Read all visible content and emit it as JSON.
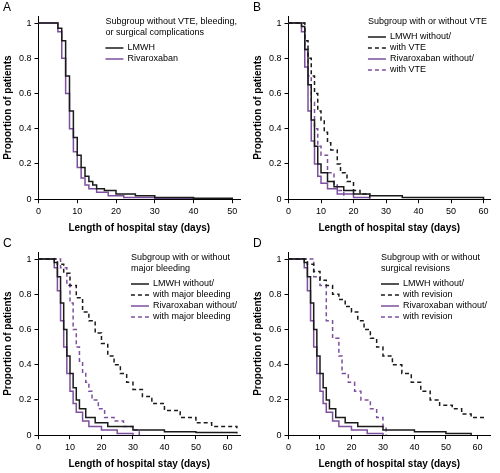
{
  "chart_data": [
    {
      "type": "line",
      "panel": "A",
      "title": [
        "Subgroup without VTE, bleeding,",
        "or surgical complications"
      ],
      "x_label": "Length of hospital stay (days)",
      "y_label": "Proportion of patients",
      "xlim": [
        0,
        52
      ],
      "xticks": [
        0,
        10,
        20,
        30,
        40,
        50
      ],
      "ylim": [
        0,
        1.04
      ],
      "yticks": [
        0,
        0.2,
        0.4,
        0.6,
        0.8,
        1
      ],
      "grid": false,
      "series": [
        {
          "name": "LMWH",
          "color": "#1a1a1a",
          "line_style": "solid",
          "x": [
            0,
            5,
            6,
            7,
            8,
            9,
            10,
            11,
            12,
            13,
            14,
            15,
            17,
            20,
            25,
            30,
            40,
            50
          ],
          "values": [
            1,
            0.97,
            0.9,
            0.7,
            0.5,
            0.35,
            0.25,
            0.18,
            0.13,
            0.1,
            0.08,
            0.06,
            0.05,
            0.03,
            0.02,
            0.01,
            0.005,
            0
          ]
        },
        {
          "name": "Rivaroxaban",
          "color": "#7d4f9e",
          "line_style": "solid",
          "x": [
            0,
            5,
            6,
            7,
            8,
            9,
            10,
            11,
            12,
            13,
            15,
            18,
            22,
            30,
            40
          ],
          "values": [
            1,
            0.95,
            0.8,
            0.6,
            0.4,
            0.27,
            0.18,
            0.12,
            0.08,
            0.06,
            0.04,
            0.02,
            0.01,
            0.005,
            0
          ]
        }
      ]
    },
    {
      "type": "line",
      "panel": "B",
      "title": [
        "Subgroup with or without VTE"
      ],
      "x_label": "Length of hospital stay (days)",
      "y_label": "Proportion of patients",
      "xlim": [
        0,
        62
      ],
      "xticks": [
        0,
        10,
        20,
        30,
        40,
        50,
        60
      ],
      "ylim": [
        0,
        1.04
      ],
      "yticks": [
        0,
        0.2,
        0.4,
        0.6,
        0.8,
        1
      ],
      "grid": false,
      "series": [
        {
          "name": "LMWH without/",
          "color": "#1a1a1a",
          "line_style": "solid",
          "x": [
            0,
            4,
            5,
            6,
            7,
            8,
            9,
            10,
            12,
            14,
            17,
            20,
            25,
            35,
            60
          ],
          "values": [
            1,
            0.98,
            0.85,
            0.65,
            0.45,
            0.3,
            0.2,
            0.15,
            0.1,
            0.07,
            0.05,
            0.03,
            0.02,
            0.01,
            0
          ]
        },
        {
          "name": "with VTE",
          "color": "#1a1a1a",
          "line_style": "dashed",
          "x": [
            0,
            5,
            6,
            7,
            8,
            9,
            10,
            11,
            12,
            13,
            15,
            16,
            18,
            20,
            22,
            25
          ],
          "values": [
            1,
            0.9,
            0.8,
            0.7,
            0.6,
            0.5,
            0.45,
            0.38,
            0.32,
            0.28,
            0.2,
            0.15,
            0.1,
            0.05,
            0.03,
            0
          ]
        },
        {
          "name": "Rivaroxaban without/",
          "color": "#7d4f9e",
          "line_style": "solid",
          "x": [
            0,
            4,
            5,
            6,
            7,
            8,
            9,
            10,
            12,
            15,
            20,
            25
          ],
          "values": [
            1,
            0.95,
            0.75,
            0.5,
            0.33,
            0.2,
            0.13,
            0.09,
            0.06,
            0.03,
            0.01,
            0
          ]
        },
        {
          "name": "with VTE",
          "color": "#7d4f9e",
          "line_style": "dashed",
          "x": [
            0,
            5,
            6,
            7,
            8,
            9,
            10,
            12,
            14,
            15,
            17
          ],
          "values": [
            1,
            0.85,
            0.7,
            0.55,
            0.4,
            0.3,
            0.25,
            0.15,
            0.08,
            0.05,
            0
          ]
        }
      ]
    },
    {
      "type": "line",
      "panel": "C",
      "title": [
        "Subgroup with or without",
        "major bleeding"
      ],
      "x_label": "Length of hospital stay (days)",
      "y_label": "Proportion of patients",
      "xlim": [
        0,
        64
      ],
      "xticks": [
        0,
        10,
        20,
        30,
        40,
        50,
        60
      ],
      "ylim": [
        0,
        1.04
      ],
      "yticks": [
        0,
        0.2,
        0.4,
        0.6,
        0.8,
        1
      ],
      "grid": false,
      "series": [
        {
          "name": "LMWH without/",
          "color": "#1a1a1a",
          "line_style": "solid",
          "x": [
            0,
            5,
            6,
            7,
            8,
            9,
            10,
            11,
            12,
            13,
            15,
            18,
            22,
            30,
            40,
            50,
            63
          ],
          "values": [
            1,
            0.98,
            0.9,
            0.75,
            0.6,
            0.45,
            0.35,
            0.27,
            0.2,
            0.15,
            0.1,
            0.07,
            0.05,
            0.03,
            0.02,
            0.015,
            0.01
          ]
        },
        {
          "name": "with major bleeding",
          "color": "#1a1a1a",
          "line_style": "dashed",
          "x": [
            0,
            6,
            8,
            10,
            12,
            14,
            16,
            18,
            20,
            22,
            24,
            26,
            28,
            30,
            33,
            36,
            40,
            45,
            50,
            55,
            63
          ],
          "values": [
            1,
            0.97,
            0.92,
            0.85,
            0.78,
            0.7,
            0.65,
            0.58,
            0.52,
            0.45,
            0.4,
            0.35,
            0.3,
            0.26,
            0.22,
            0.18,
            0.14,
            0.1,
            0.07,
            0.05,
            0.04
          ]
        },
        {
          "name": "Rivaroxaban without/",
          "color": "#7d4f9e",
          "line_style": "solid",
          "x": [
            0,
            5,
            6,
            7,
            8,
            9,
            10,
            11,
            12,
            14,
            16,
            20,
            25,
            30
          ],
          "values": [
            1,
            0.95,
            0.82,
            0.65,
            0.5,
            0.35,
            0.25,
            0.18,
            0.13,
            0.08,
            0.05,
            0.03,
            0.01,
            0
          ]
        },
        {
          "name": "with major bleeding",
          "color": "#7d4f9e",
          "line_style": "dashed",
          "x": [
            0,
            7,
            9,
            10,
            11,
            12,
            13,
            14,
            15,
            16,
            17,
            19,
            21,
            24,
            27,
            30,
            32
          ],
          "values": [
            1,
            0.95,
            0.85,
            0.75,
            0.6,
            0.5,
            0.42,
            0.35,
            0.3,
            0.25,
            0.2,
            0.15,
            0.1,
            0.08,
            0.05,
            0.03,
            0
          ]
        }
      ]
    },
    {
      "type": "line",
      "panel": "D",
      "title": [
        "Subgroup with or without",
        "surgical revisions"
      ],
      "x_label": "Length of hospital stay (days)",
      "y_label": "Proportion of patients",
      "xlim": [
        0,
        64
      ],
      "xticks": [
        0,
        10,
        20,
        30,
        40,
        50,
        60
      ],
      "ylim": [
        0,
        1.04
      ],
      "yticks": [
        0,
        0.2,
        0.4,
        0.6,
        0.8,
        1
      ],
      "grid": false,
      "series": [
        {
          "name": "LMWH without/",
          "color": "#1a1a1a",
          "line_style": "solid",
          "x": [
            0,
            5,
            6,
            7,
            8,
            9,
            10,
            11,
            12,
            13,
            15,
            18,
            22,
            30,
            40,
            50,
            58
          ],
          "values": [
            1,
            0.98,
            0.9,
            0.75,
            0.6,
            0.45,
            0.35,
            0.27,
            0.2,
            0.15,
            0.1,
            0.07,
            0.05,
            0.03,
            0.02,
            0.01,
            0
          ]
        },
        {
          "name": "with revision",
          "color": "#1a1a1a",
          "line_style": "dashed",
          "x": [
            0,
            6,
            8,
            10,
            12,
            14,
            16,
            18,
            20,
            22,
            24,
            26,
            28,
            30,
            33,
            36,
            39,
            42,
            45,
            48,
            52,
            55,
            58,
            63
          ],
          "values": [
            1,
            0.97,
            0.93,
            0.88,
            0.85,
            0.8,
            0.77,
            0.73,
            0.7,
            0.65,
            0.6,
            0.55,
            0.5,
            0.45,
            0.4,
            0.35,
            0.3,
            0.25,
            0.2,
            0.17,
            0.15,
            0.12,
            0.1,
            0.1
          ]
        },
        {
          "name": "Rivaroxaban without/",
          "color": "#7d4f9e",
          "line_style": "solid",
          "x": [
            0,
            5,
            6,
            7,
            8,
            9,
            10,
            11,
            12,
            14,
            16,
            20,
            25,
            30
          ],
          "values": [
            1,
            0.95,
            0.82,
            0.65,
            0.5,
            0.35,
            0.25,
            0.18,
            0.13,
            0.08,
            0.05,
            0.03,
            0.01,
            0
          ]
        },
        {
          "name": "with revision",
          "color": "#7d4f9e",
          "line_style": "dashed",
          "x": [
            0,
            8,
            10,
            12,
            14,
            16,
            17,
            19,
            21,
            23,
            26,
            28,
            30,
            31
          ],
          "values": [
            1,
            0.9,
            0.85,
            0.65,
            0.55,
            0.45,
            0.35,
            0.3,
            0.25,
            0.2,
            0.15,
            0.1,
            0.05,
            0
          ]
        }
      ]
    }
  ]
}
